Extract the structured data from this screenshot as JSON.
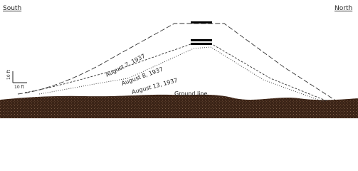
{
  "labels": {
    "south": "South",
    "north": "North"
  },
  "profiles": [
    {
      "label": "August 7, 1937"
    },
    {
      "label": "August 8, 1937"
    },
    {
      "label": "August 13, 1937"
    }
  ],
  "ground_line": "Ground line",
  "scale": {
    "vertical": "10 ft",
    "horizontal": "10 ft"
  }
}
